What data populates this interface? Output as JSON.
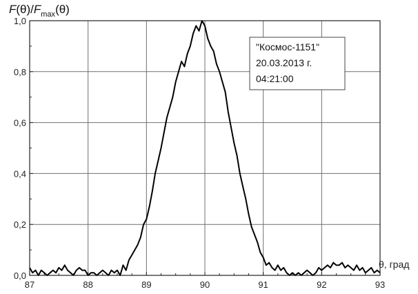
{
  "chart_data": {
    "type": "line",
    "ylabel": {
      "prefix": "F",
      "open1": "(θ)/",
      "prefix2": "F",
      "sub": "max",
      "close2": "(θ)"
    },
    "xlabel": "θ, град",
    "xlim": [
      87,
      93
    ],
    "ylim": [
      0,
      1.0
    ],
    "xticks": [
      "87",
      "88",
      "89",
      "90",
      "91",
      "92",
      "93"
    ],
    "yticks": [
      "0,0",
      "0,2",
      "0,4",
      "0,6",
      "0,8",
      "1,0"
    ],
    "grid": true,
    "annotation": {
      "lines": [
        "\"Космос-1151\"",
        "20.03.2013 г.",
        "04:21:00"
      ]
    },
    "series": [
      {
        "x": [
          87.0,
          87.05,
          87.1,
          87.15,
          87.2,
          87.25,
          87.3,
          87.35,
          87.4,
          87.45,
          87.5,
          87.55,
          87.6,
          87.65,
          87.7,
          87.75,
          87.8,
          87.85,
          87.9,
          87.95,
          88.0,
          88.05,
          88.1,
          88.15,
          88.2,
          88.25,
          88.3,
          88.35,
          88.4,
          88.45,
          88.5,
          88.55,
          88.6,
          88.65,
          88.7,
          88.75,
          88.8,
          88.85,
          88.9,
          88.95,
          89.0,
          89.05,
          89.1,
          89.15,
          89.2,
          89.25,
          89.3,
          89.35,
          89.4,
          89.45,
          89.5,
          89.55,
          89.6,
          89.65,
          89.7,
          89.75,
          89.8,
          89.85,
          89.9,
          89.95,
          90.0,
          90.05,
          90.1,
          90.15,
          90.2,
          90.25,
          90.3,
          90.35,
          90.4,
          90.45,
          90.5,
          90.55,
          90.6,
          90.65,
          90.7,
          90.75,
          90.8,
          90.85,
          90.9,
          90.95,
          91.0,
          91.05,
          91.1,
          91.15,
          91.2,
          91.25,
          91.3,
          91.35,
          91.4,
          91.45,
          91.5,
          91.55,
          91.6,
          91.65,
          91.7,
          91.75,
          91.8,
          91.85,
          91.9,
          91.95,
          92.0,
          92.05,
          92.1,
          92.15,
          92.2,
          92.25,
          92.3,
          92.35,
          92.4,
          92.45,
          92.5,
          92.55,
          92.6,
          92.65,
          92.7,
          92.75,
          92.8,
          92.85,
          92.9,
          92.95,
          93.0
        ],
        "y": [
          0.03,
          0.01,
          0.02,
          0.0,
          0.02,
          0.01,
          0.0,
          0.01,
          0.02,
          0.01,
          0.03,
          0.02,
          0.04,
          0.02,
          0.01,
          0.0,
          0.02,
          0.03,
          0.02,
          0.02,
          0.0,
          0.01,
          0.01,
          0.0,
          0.01,
          0.02,
          0.01,
          0.0,
          0.02,
          0.01,
          0.02,
          0.0,
          0.04,
          0.02,
          0.06,
          0.08,
          0.1,
          0.12,
          0.15,
          0.2,
          0.22,
          0.27,
          0.33,
          0.4,
          0.45,
          0.5,
          0.56,
          0.62,
          0.66,
          0.7,
          0.76,
          0.8,
          0.84,
          0.82,
          0.87,
          0.9,
          0.95,
          0.98,
          0.96,
          1.0,
          0.98,
          0.93,
          0.9,
          0.88,
          0.83,
          0.8,
          0.76,
          0.72,
          0.64,
          0.58,
          0.52,
          0.47,
          0.4,
          0.35,
          0.3,
          0.24,
          0.19,
          0.16,
          0.13,
          0.09,
          0.07,
          0.04,
          0.05,
          0.03,
          0.02,
          0.04,
          0.02,
          0.03,
          0.01,
          0.0,
          0.01,
          0.0,
          0.01,
          0.0,
          0.01,
          0.02,
          0.01,
          0.0,
          0.01,
          0.03,
          0.02,
          0.03,
          0.04,
          0.03,
          0.05,
          0.04,
          0.04,
          0.05,
          0.03,
          0.04,
          0.03,
          0.02,
          0.04,
          0.02,
          0.03,
          0.01,
          0.02,
          0.03,
          0.01,
          0.02,
          0.01
        ]
      }
    ]
  },
  "colors": {
    "line": "#000000",
    "grid": "#6f6f6f",
    "axis": "#222222"
  }
}
